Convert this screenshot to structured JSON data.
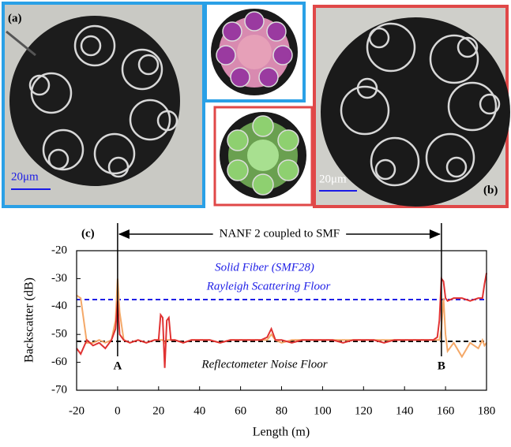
{
  "panels": {
    "a": {
      "label": "(a)",
      "scale": "20μm"
    },
    "b": {
      "label": "(b)",
      "scale": "20μm"
    }
  },
  "chart_data": {
    "type": "line",
    "panel_label": "(c)",
    "x_label": "Length (m)",
    "y_label": "Backscatter (dB)",
    "xlim": [
      -20,
      180
    ],
    "xticks": [
      -20,
      0,
      20,
      40,
      60,
      80,
      100,
      120,
      140,
      160,
      180
    ],
    "ylim": [
      -70,
      -20
    ],
    "yticks": [
      -70,
      -60,
      -50,
      -40,
      -30,
      -20
    ],
    "x": [
      -20,
      -18,
      -15,
      -12,
      -9,
      -6,
      -3,
      -1,
      0,
      1,
      3,
      6,
      10,
      14,
      18,
      20,
      21,
      22,
      23,
      24,
      25,
      26,
      28,
      32,
      36,
      40,
      45,
      50,
      55,
      60,
      65,
      70,
      73,
      75,
      77,
      80,
      85,
      90,
      95,
      100,
      105,
      110,
      115,
      120,
      125,
      130,
      135,
      140,
      145,
      150,
      154,
      156,
      157,
      158,
      159,
      160,
      161,
      164,
      168,
      172,
      176,
      178,
      179,
      180
    ],
    "series": [
      {
        "color": "#f4a868",
        "values": [
          -36,
          -37,
          -53,
          -53,
          -52,
          -53,
          -52,
          -45,
          -30,
          -42,
          -52,
          -53,
          -52,
          -53,
          -52,
          -52,
          -52,
          -52,
          -53,
          -52,
          -52,
          -52,
          -52,
          -53,
          -52,
          -52,
          -52,
          -53,
          -52,
          -52,
          -52,
          -52,
          -52,
          -50,
          -52,
          -53,
          -52,
          -52,
          -52,
          -52,
          -52,
          -52,
          -52,
          -52,
          -52,
          -52,
          -52,
          -52,
          -52,
          -52,
          -52,
          -52,
          -52,
          -48,
          -37,
          -50,
          -56,
          -53,
          -58,
          -53,
          -55,
          -52,
          -54,
          -53
        ]
      },
      {
        "color": "#e03232",
        "values": [
          -55,
          -57,
          -52,
          -54,
          -53,
          -55,
          -52,
          -48,
          -38,
          -50,
          -52,
          -53,
          -52,
          -53,
          -52,
          -52,
          -43,
          -44,
          -62,
          -45,
          -44,
          -52,
          -52,
          -53,
          -52,
          -52,
          -52,
          -53,
          -52,
          -52,
          -52,
          -52,
          -51,
          -48,
          -52,
          -52,
          -53,
          -52,
          -52,
          -52,
          -52,
          -53,
          -52,
          -52,
          -52,
          -53,
          -52,
          -52,
          -52,
          -52,
          -52,
          -51,
          -45,
          -30,
          -31,
          -37,
          -38,
          -37,
          -37,
          -38,
          -37,
          -37,
          -32,
          -28
        ]
      }
    ],
    "reference_lines": [
      {
        "value": -37.5,
        "color": "#1f1fe6",
        "labels": [
          "Solid Fiber (SMF28)",
          "Rayleigh Scattering Floor"
        ]
      },
      {
        "value": -52.5,
        "color": "#000000",
        "labels": [
          "Reflectometer Noise Floor"
        ]
      }
    ],
    "markers": [
      {
        "x": 0,
        "label": "A"
      },
      {
        "x": 158,
        "label": "B"
      }
    ],
    "span_label": "NANF 2 coupled to SMF"
  }
}
